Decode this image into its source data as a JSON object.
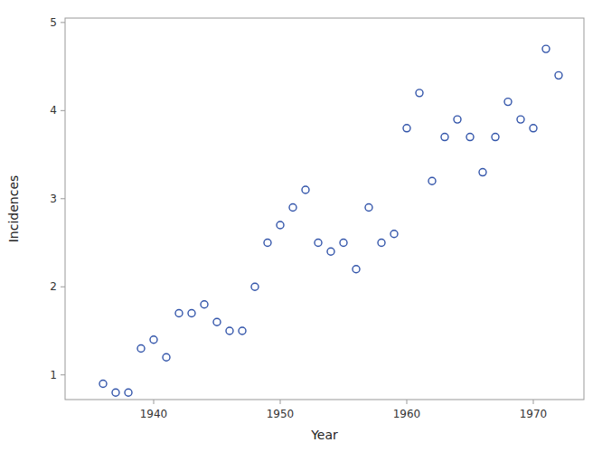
{
  "chart_data": {
    "type": "scatter",
    "x": [
      1936,
      1937,
      1938,
      1939,
      1940,
      1941,
      1942,
      1943,
      1944,
      1945,
      1946,
      1947,
      1948,
      1949,
      1950,
      1951,
      1952,
      1953,
      1954,
      1955,
      1956,
      1957,
      1958,
      1959,
      1960,
      1961,
      1962,
      1963,
      1964,
      1965,
      1966,
      1967,
      1968,
      1969,
      1970,
      1971,
      1972
    ],
    "values": [
      0.9,
      0.8,
      0.8,
      1.3,
      1.4,
      1.2,
      1.7,
      1.7,
      1.8,
      1.6,
      1.5,
      1.5,
      2.0,
      2.5,
      2.7,
      2.9,
      3.1,
      2.5,
      2.4,
      2.5,
      2.2,
      2.9,
      2.5,
      2.6,
      3.8,
      4.2,
      3.2,
      3.7,
      3.9,
      3.7,
      3.3,
      3.7,
      4.1,
      3.9,
      3.8,
      4.7,
      4.4
    ],
    "xlabel": "Year",
    "ylabel": "Incidences",
    "xlim": [
      1933,
      1974
    ],
    "ylim": [
      0.72,
      5.05
    ],
    "xticks": [
      1940,
      1950,
      1960,
      1970
    ],
    "yticks": [
      1,
      2,
      3,
      4,
      5
    ],
    "color": "#3355AA",
    "marker": "open-circle",
    "grid": false
  }
}
